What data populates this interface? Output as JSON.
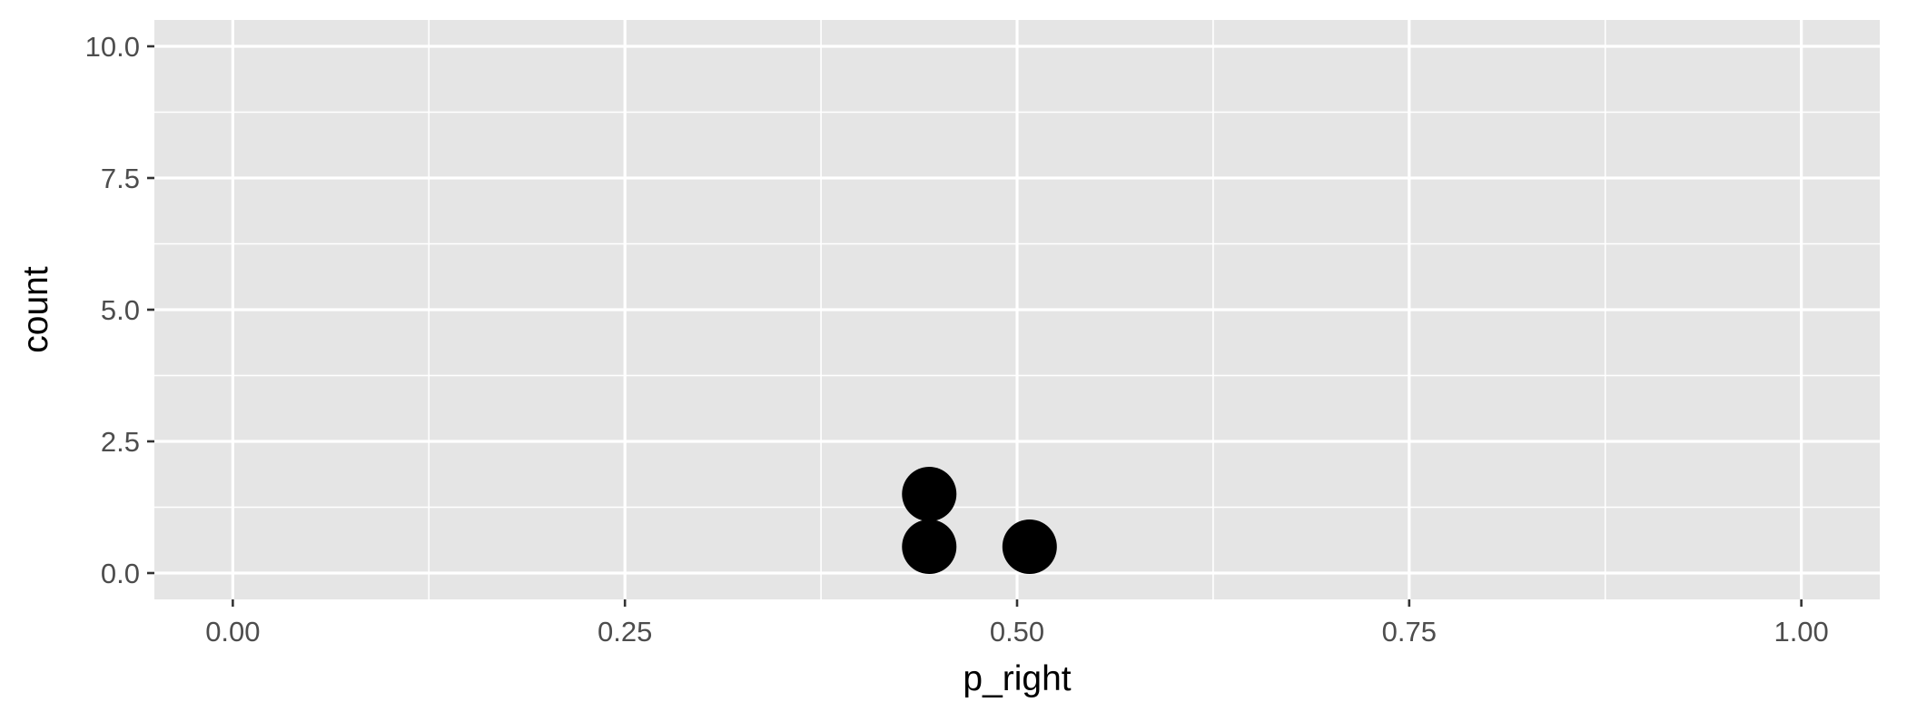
{
  "chart_data": {
    "type": "scatter",
    "title": "",
    "xlabel": "p_right",
    "ylabel": "count",
    "xlim": [
      -0.05,
      1.05
    ],
    "ylim": [
      -0.5,
      10.5
    ],
    "x_ticks": [
      0.0,
      0.25,
      0.5,
      0.75,
      1.0
    ],
    "x_tick_labels": [
      "0.00",
      "0.25",
      "0.50",
      "0.75",
      "1.00"
    ],
    "y_ticks": [
      0.0,
      2.5,
      5.0,
      7.5,
      10.0
    ],
    "y_tick_labels": [
      "0.0",
      "2.5",
      "5.0",
      "7.5",
      "10.0"
    ],
    "grid": true,
    "legend": "none",
    "panel_color": "#e5e5e5",
    "grid_color": "#ffffff",
    "point_color": "#000000",
    "points": [
      {
        "x": 0.444,
        "y": 0.5
      },
      {
        "x": 0.444,
        "y": 1.5
      },
      {
        "x": 0.508,
        "y": 0.5
      }
    ]
  }
}
